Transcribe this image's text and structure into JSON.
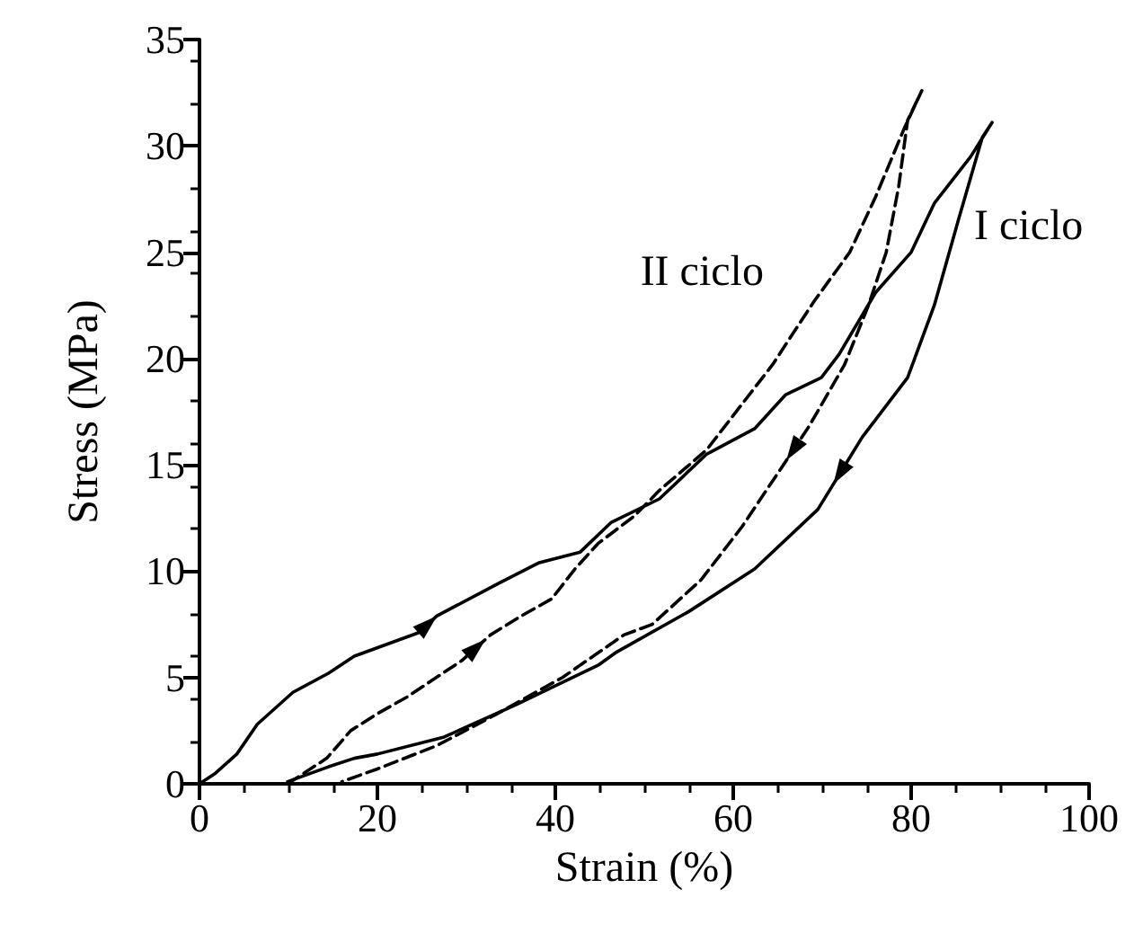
{
  "chart_data": {
    "type": "line",
    "xlabel": "Strain (%)",
    "ylabel": "Stress (MPa)",
    "xlim": [
      0,
      100
    ],
    "xticks": [
      0,
      20,
      40,
      60,
      80,
      100
    ],
    "ylim": [
      0,
      35
    ],
    "yticks": [
      0,
      5,
      10,
      15,
      20,
      25,
      30,
      35
    ],
    "grid": false,
    "legend": false,
    "marker": "none",
    "series": [
      {
        "name": "I ciclo",
        "color": "#000000",
        "line_style": "solid",
        "x": [
          0,
          1.8,
          4.2,
          6.5,
          10.5,
          14.5,
          17.4,
          24.6,
          26.7,
          33.5,
          38.2,
          42.8,
          46.3,
          51.7,
          57,
          62.4,
          65.9,
          69.9,
          71.9,
          76,
          80,
          82.6,
          86.7,
          89.1,
          88,
          85.3,
          82.6,
          79.6,
          74.5,
          69.5,
          62.4,
          55,
          46.9,
          44.9,
          35.5,
          27.5,
          20,
          17.4,
          14.5,
          9.9
        ],
        "values": [
          0,
          0.5,
          1.4,
          2.8,
          4.3,
          5.2,
          6.0,
          7.1,
          7.9,
          9.4,
          10.4,
          10.9,
          12.3,
          13.4,
          15.5,
          16.7,
          18.3,
          19.1,
          20.2,
          23.1,
          25.0,
          27.3,
          29.5,
          31.1,
          30.4,
          26.5,
          22.5,
          19.1,
          16.3,
          12.9,
          10.1,
          8.1,
          6.2,
          5.6,
          3.7,
          2.2,
          1.4,
          1.2,
          0.8,
          0.1
        ]
      },
      {
        "name": "II ciclo",
        "color": "#000000",
        "line_style": "dashed",
        "x": [
          9.9,
          14.3,
          17,
          20,
          23.4,
          29.5,
          32.7,
          36.2,
          39.6,
          42.2,
          44.8,
          48.9,
          51.7,
          57,
          64.4,
          69.1,
          73.1,
          76,
          79.2,
          81.2,
          79.6,
          78.6,
          77.2,
          75.2,
          72.5,
          68.5,
          65,
          61,
          56.4,
          50.9,
          47.7,
          40.8,
          33.5,
          26.7,
          20,
          16
        ],
        "values": [
          0,
          1.2,
          2.5,
          3.3,
          4.1,
          5.8,
          7.0,
          7.9,
          8.7,
          10.1,
          11.3,
          12.6,
          13.8,
          15.7,
          19.7,
          22.7,
          25.0,
          27.6,
          30.8,
          32.6,
          31.2,
          28.1,
          25.0,
          22.5,
          19.7,
          16.8,
          14.6,
          12.1,
          9.6,
          7.5,
          7.0,
          5.0,
          3.3,
          1.8,
          0.7,
          0.1
        ]
      }
    ]
  }
}
